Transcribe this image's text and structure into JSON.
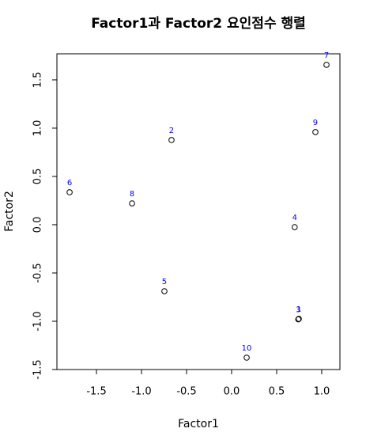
{
  "chart_data": {
    "type": "scatter",
    "title": "Factor1과 Factor2 요인점수 행렬",
    "x_label": "Factor1",
    "y_label": "Factor2",
    "x": [
      0.746,
      -0.667,
      0.74,
      0.7,
      -0.746,
      -1.798,
      1.053,
      -1.105,
      0.93,
      0.167
    ],
    "values": [
      -0.975,
      0.877,
      -0.98,
      -0.025,
      -0.689,
      0.336,
      1.656,
      0.221,
      0.959,
      -1.377
    ],
    "labels": [
      "1",
      "2",
      "3",
      "4",
      "5",
      "6",
      "7",
      "8",
      "9",
      "10"
    ],
    "color": "#000000",
    "label_color": "#0000ff",
    "xlim": [
      -1.939,
      1.202
    ],
    "ylim": [
      -1.5,
      1.77
    ],
    "xticks": [
      -1.5,
      {
        "value": -1,
        "label": "-1.0"
      },
      -0.5,
      {
        "value": 0,
        "label": "0.0"
      },
      0.5,
      {
        "value": 1,
        "label": "1.0"
      }
    ],
    "yticks": [
      -1.5,
      {
        "value": -1,
        "label": "-1.0"
      },
      -0.5,
      {
        "value": 0,
        "label": "0.0"
      },
      0.5,
      {
        "value": 1,
        "label": "1.0"
      },
      1.5
    ]
  }
}
